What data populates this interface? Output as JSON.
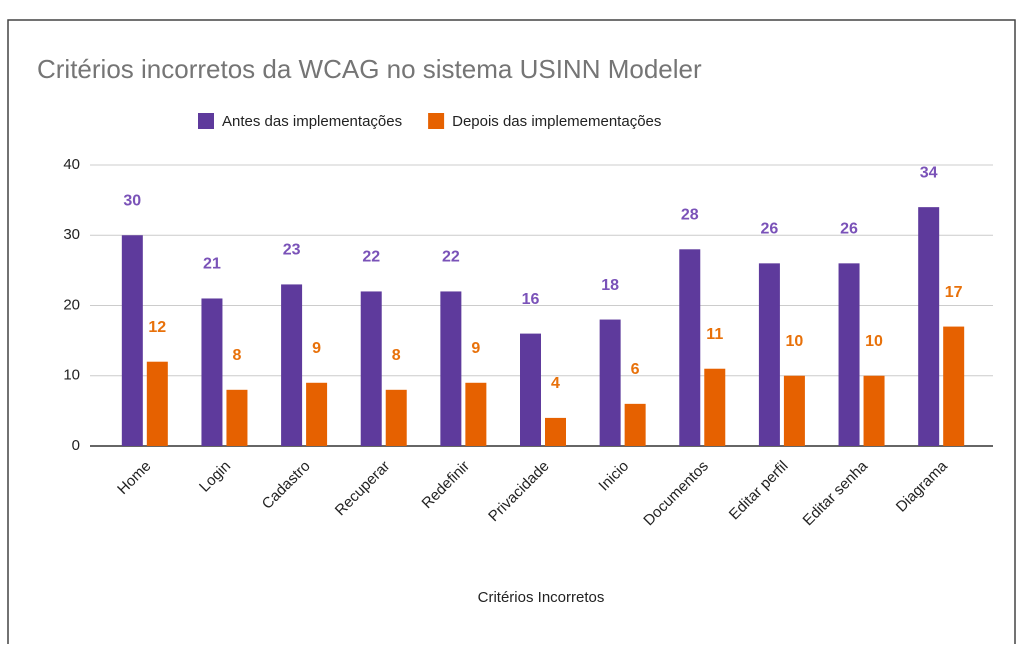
{
  "chart_data": {
    "type": "bar",
    "title": "Critérios incorretos da WCAG no sistema USINN Modeler",
    "x_label": "Critérios Incorretos",
    "categories": [
      "Home",
      "Login",
      "Cadastro",
      "Recuperar",
      "Redefinir",
      "Privacidade",
      "Inicio",
      "Documentos",
      "Editar perfil",
      "Editar senha",
      "Diagrama"
    ],
    "series": [
      {
        "name": "Antes das implementações",
        "color": "#5e3a9c",
        "values": [
          30,
          21,
          23,
          22,
          22,
          16,
          18,
          28,
          26,
          26,
          34
        ]
      },
      {
        "name": "Depois das implemementações",
        "color": "#e66100",
        "values": [
          12,
          8,
          9,
          8,
          9,
          4,
          6,
          11,
          10,
          10,
          17
        ]
      }
    ],
    "ylim": [
      0,
      40
    ],
    "yticks": [
      0,
      10,
      20,
      30,
      40
    ],
    "grid": true,
    "legend": "top"
  }
}
